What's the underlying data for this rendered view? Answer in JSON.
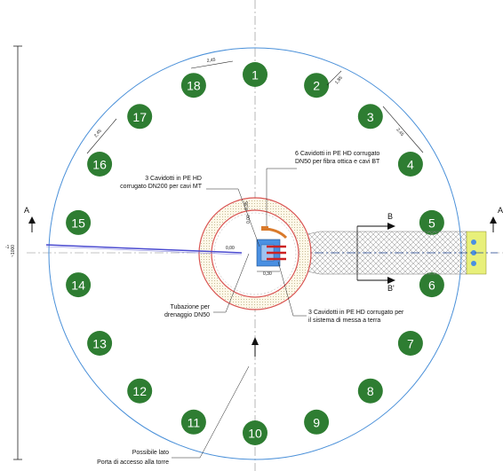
{
  "colors": {
    "pile_fill": "#2e7d32",
    "outer_circle": "#4a90d9",
    "rebar_ring": "#d9534f",
    "centerline": "#888888",
    "mesh": "#8a8a8a",
    "plinth_blue": "#4a90e2",
    "duct_red": "#cc2222",
    "duct_orange": "#d97a2b",
    "earth_end": "#e8f07a",
    "drain_line": "#4a4ad0"
  },
  "piles": [
    {
      "label": "1"
    },
    {
      "label": "2"
    },
    {
      "label": "3"
    },
    {
      "label": "4"
    },
    {
      "label": "5"
    },
    {
      "label": "6"
    },
    {
      "label": "7"
    },
    {
      "label": "8"
    },
    {
      "label": "9"
    },
    {
      "label": "10"
    },
    {
      "label": "11"
    },
    {
      "label": "12"
    },
    {
      "label": "13"
    },
    {
      "label": "14"
    },
    {
      "label": "15"
    },
    {
      "label": "16"
    },
    {
      "label": "17"
    },
    {
      "label": "18"
    }
  ],
  "annotations": {
    "fiber_ducts": [
      "6 Cavidotti in PE HD corrugato",
      "DN50 per fibra ottica e cavi BT"
    ],
    "mt_ducts": [
      "3 Cavidotti in PE HD",
      "corrugato DN200 per cavi MT"
    ],
    "drainage": [
      "Tubazione per",
      "drenaggio DN50"
    ],
    "earthing_ducts": [
      "3 Cavidotti in PE HD corrugato  per",
      "il sistema di messa a terra"
    ],
    "tower_door": [
      "Possibile lato",
      "Porta di accesso alla torre"
    ]
  },
  "dimensions": {
    "pile_spacing_top": "2,45",
    "pile_spacing_right": "2,45",
    "pile_gap_small": "1,85",
    "pile_spacing_left": "2,45",
    "overall_diameter": "~1000",
    "duct_offset_x": "0,00",
    "duct_offset_y": "0,00",
    "duct_width": "0,30",
    "duct_height": "0,35",
    "minus_one": "-1"
  },
  "sections": {
    "a_left": "A",
    "a_right": "A'",
    "b_top": "B",
    "b_bottom": "B'"
  }
}
